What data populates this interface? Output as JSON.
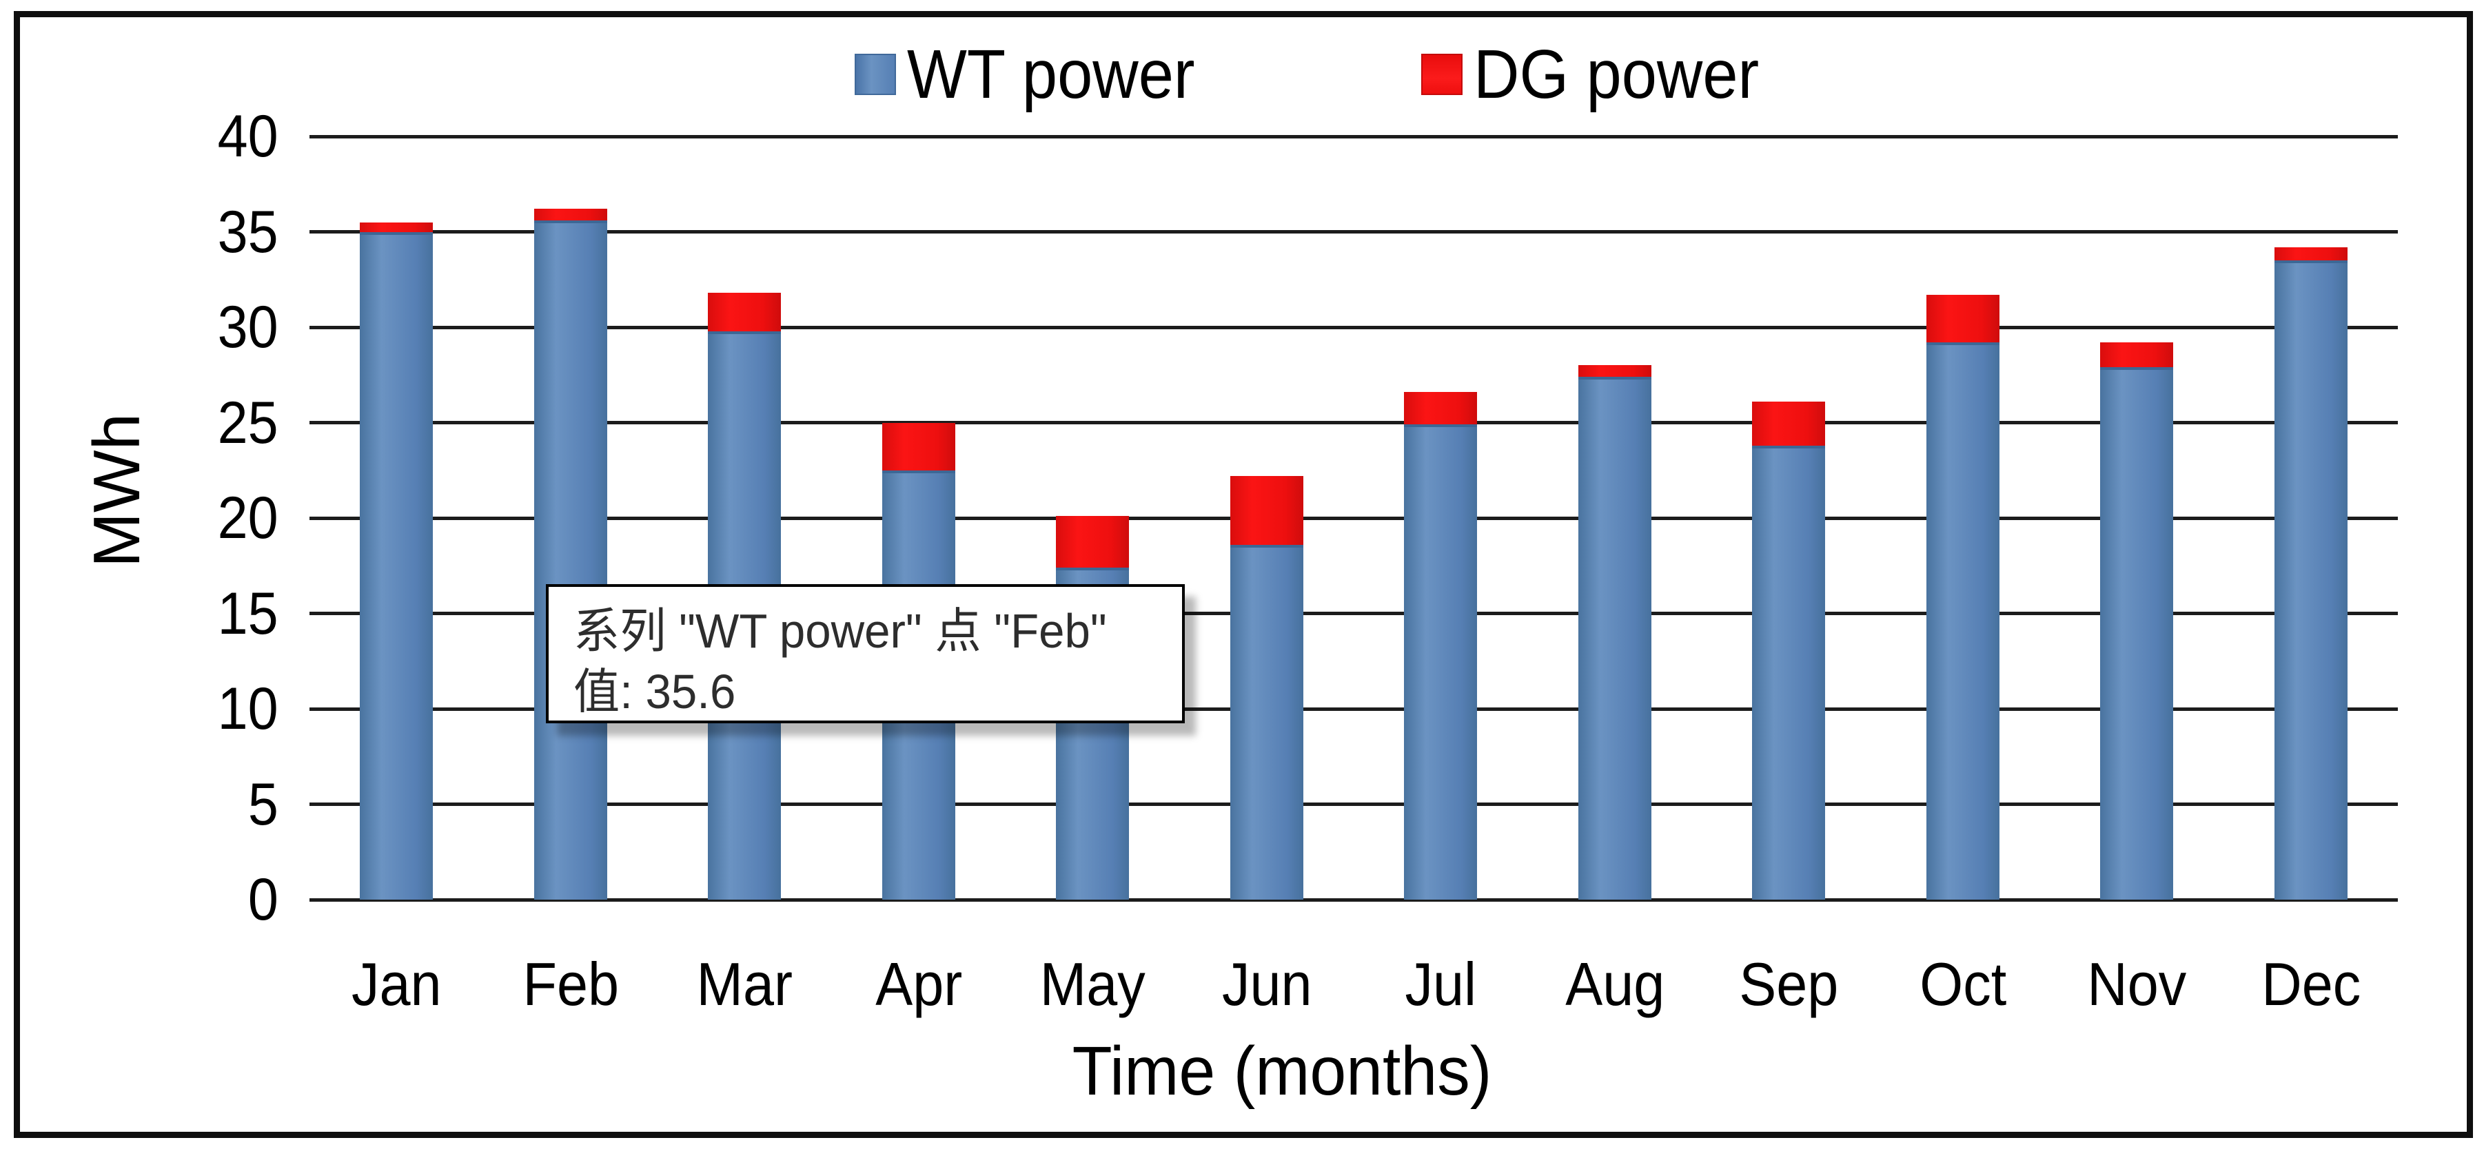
{
  "legend": {
    "items": [
      {
        "label": "WT power",
        "color": "#567fb4"
      },
      {
        "label": "DG power",
        "color": "#ee0f0f"
      }
    ]
  },
  "tooltip": {
    "line1": "系列 \"WT power\" 点 \"Feb\"",
    "line2": "值: 35.6"
  },
  "colors": {
    "wt_bar": "#567fb4",
    "dg_bar": "#ee0f0f",
    "gridline": "#1c1c1c",
    "tooltip_border": "#000000",
    "background": "#ffffff"
  },
  "chart_data": {
    "type": "bar",
    "stacked": true,
    "title": "",
    "categories": [
      "Jan",
      "Feb",
      "Mar",
      "Apr",
      "May",
      "Jun",
      "Jul",
      "Aug",
      "Sep",
      "Oct",
      "Nov",
      "Dec"
    ],
    "series": [
      {
        "name": "WT power",
        "color": "#567fb4",
        "values": [
          35.0,
          35.6,
          29.8,
          22.5,
          17.4,
          18.6,
          24.9,
          27.4,
          23.8,
          29.2,
          27.9,
          33.5
        ]
      },
      {
        "name": "DG power",
        "color": "#ee0f0f",
        "values": [
          0.5,
          0.6,
          2.0,
          2.5,
          2.7,
          3.6,
          1.7,
          0.6,
          2.3,
          2.5,
          1.3,
          0.7
        ]
      }
    ],
    "stack_totals": [
      35.5,
      36.2,
      31.8,
      25.0,
      20.1,
      22.2,
      26.6,
      28.0,
      26.1,
      31.7,
      29.2,
      34.2
    ],
    "xlabel": "Time (months)",
    "ylabel": "MWh",
    "ylim": [
      0,
      40
    ],
    "ytick_step": 5,
    "y_tick_labels": [
      "0",
      "5",
      "10",
      "15",
      "20",
      "25",
      "30",
      "35",
      "40"
    ],
    "grid": true,
    "legend_position": "top"
  }
}
